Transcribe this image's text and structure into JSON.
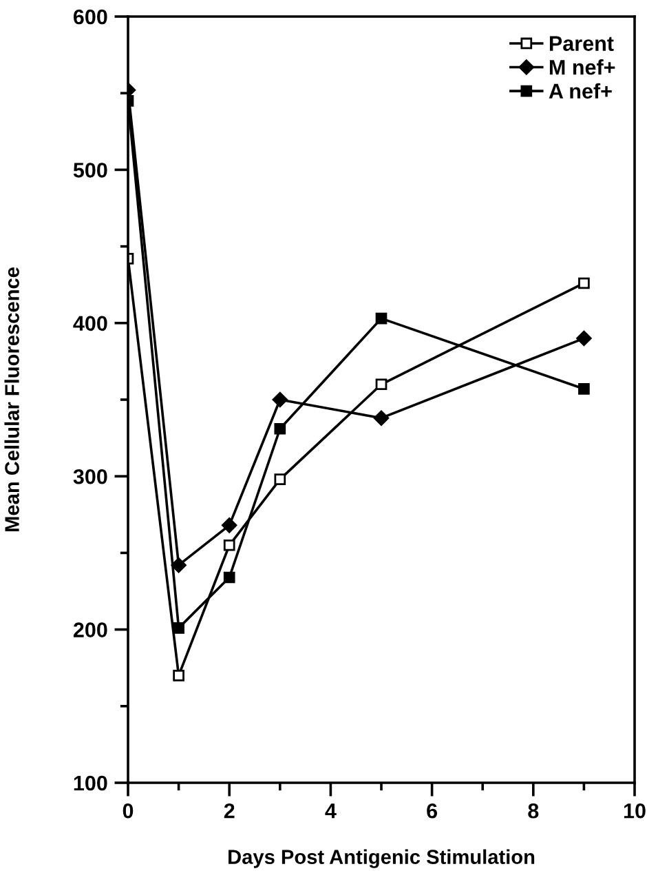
{
  "chart_data": {
    "type": "line",
    "xlabel": "Days Post Antigenic Stimulation",
    "ylabel": "Mean Cellular Fluorescence",
    "x": [
      0,
      1,
      2,
      3,
      5,
      9
    ],
    "series": [
      {
        "name": "Parent",
        "color": "#000000",
        "marker": "square",
        "values": [
          442,
          170,
          255,
          298,
          360,
          426
        ]
      },
      {
        "name": "M nef+",
        "color": "#000000",
        "marker": "diamond",
        "values": [
          552,
          242,
          268,
          350,
          338,
          390
        ]
      },
      {
        "name": "A nef+",
        "color": "#000000",
        "marker": "square",
        "values": [
          545,
          201,
          234,
          331,
          403,
          357
        ]
      }
    ],
    "xlim": [
      0,
      10
    ],
    "xticks": [
      0,
      2,
      4,
      6,
      8,
      10
    ],
    "ylim": [
      100,
      600
    ],
    "yticks": [
      100,
      200,
      300,
      400,
      500,
      600
    ],
    "grid": false,
    "legend": "top right",
    "line_style": "solid"
  }
}
